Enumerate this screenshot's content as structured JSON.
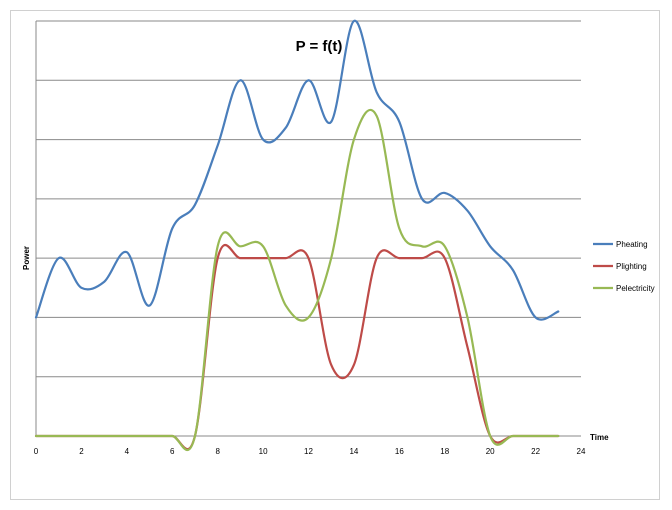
{
  "chart_data": {
    "type": "line",
    "title": "P = f(t)",
    "xlabel": "Time",
    "ylabel": "Power",
    "xlim": [
      0,
      24
    ],
    "ylim": [
      0,
      7
    ],
    "xticks": [
      "0",
      "2",
      "4",
      "6",
      "8",
      "10",
      "12",
      "14",
      "16",
      "18",
      "20",
      "22",
      "24"
    ],
    "grid": true,
    "legend_position": "right",
    "series": [
      {
        "name": "Pheating",
        "color": "#4A7EBB",
        "x": [
          0,
          1,
          2,
          3,
          4,
          5,
          6,
          7,
          8,
          9,
          10,
          11,
          12,
          13,
          14,
          15,
          16,
          17,
          18,
          19,
          20,
          21,
          22,
          23
        ],
        "y": [
          2.0,
          3.0,
          2.5,
          2.6,
          3.1,
          2.2,
          3.5,
          3.9,
          4.9,
          6.0,
          5.0,
          5.2,
          6.0,
          5.3,
          7.0,
          5.8,
          5.3,
          4.0,
          4.1,
          3.8,
          3.2,
          2.8,
          2.0,
          2.1
        ]
      },
      {
        "name": "Plighting",
        "color": "#BE4B48",
        "x": [
          0,
          1,
          2,
          3,
          4,
          5,
          6,
          7,
          8,
          9,
          10,
          11,
          12,
          13,
          14,
          15,
          16,
          17,
          18,
          19,
          20,
          21,
          22,
          23
        ],
        "y": [
          0,
          0,
          0,
          0,
          0,
          0,
          0,
          0,
          3.0,
          3.0,
          3.0,
          3.0,
          3.0,
          1.2,
          1.2,
          3.0,
          3.0,
          3.0,
          3.0,
          1.5,
          0,
          0,
          0,
          0
        ]
      },
      {
        "name": "Pelectricity",
        "color": "#98B954",
        "x": [
          0,
          1,
          2,
          3,
          4,
          5,
          6,
          7,
          8,
          9,
          10,
          11,
          12,
          13,
          14,
          15,
          16,
          17,
          18,
          19,
          20,
          21,
          22,
          23
        ],
        "y": [
          0,
          0,
          0,
          0,
          0,
          0,
          0,
          0,
          3.2,
          3.2,
          3.2,
          2.2,
          2.0,
          3.0,
          5.0,
          5.4,
          3.5,
          3.2,
          3.2,
          2.0,
          0,
          0,
          0,
          0
        ]
      }
    ]
  }
}
